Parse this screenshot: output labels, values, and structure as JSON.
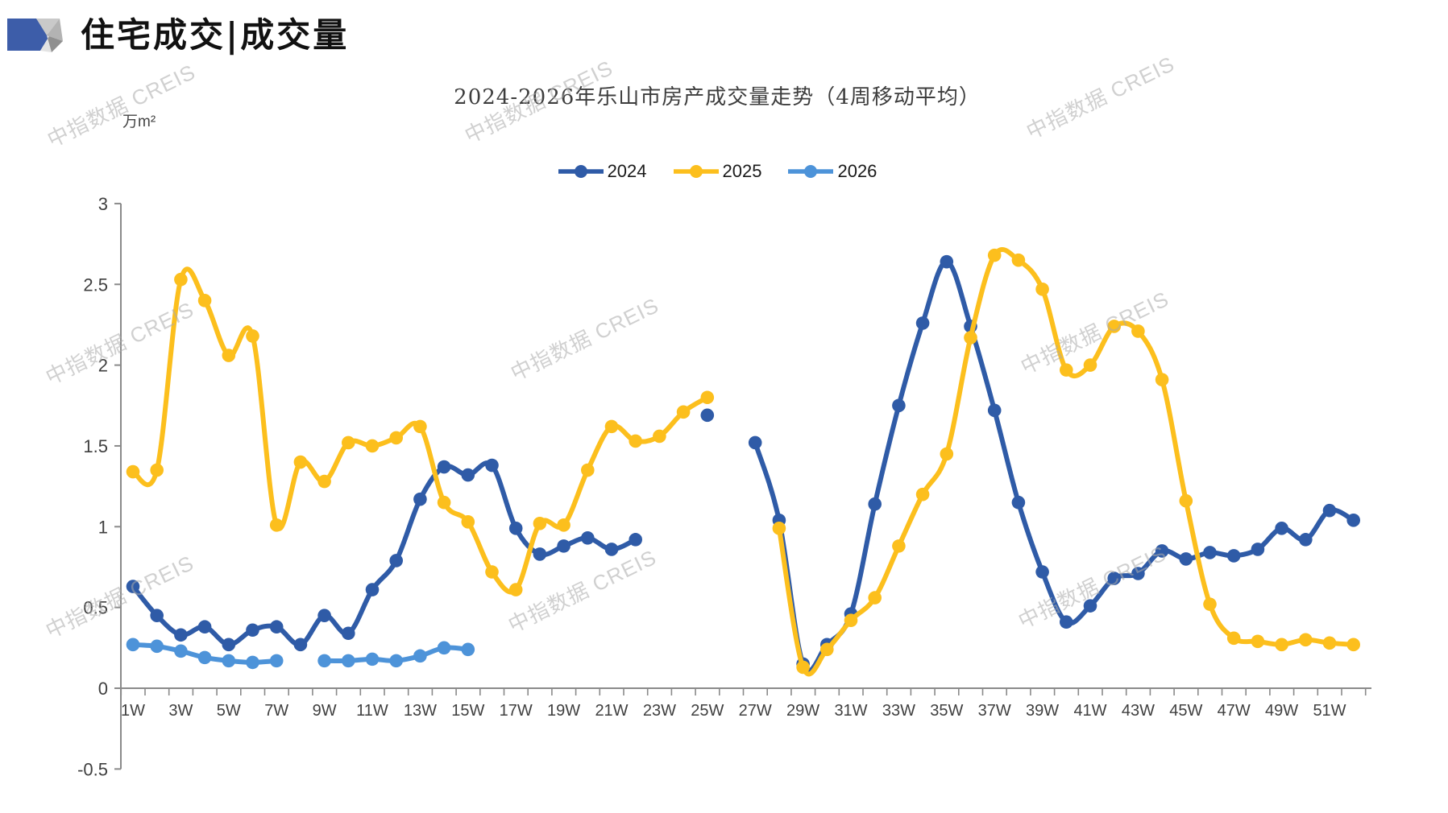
{
  "header": {
    "title": "住宅成交|成交量"
  },
  "watermark": {
    "text": "中指数据 CREIS"
  },
  "chart_data": {
    "type": "line",
    "title": "2024-2026年乐山市房产成交量走势（4周移动平均）",
    "unit_label": "万m²",
    "xlabel": "",
    "ylabel": "万m²",
    "ylim": [
      -0.5,
      3
    ],
    "ytick_step": 0.5,
    "ytick_labels": [
      "3",
      "2.5",
      "2",
      "1.5",
      "1",
      "0.5",
      "0",
      "-0.5"
    ],
    "grid": false,
    "legend_position": "top",
    "smooth_lines": true,
    "categories": [
      "1W",
      "2W",
      "3W",
      "4W",
      "5W",
      "6W",
      "7W",
      "8W",
      "9W",
      "10W",
      "11W",
      "12W",
      "13W",
      "14W",
      "15W",
      "16W",
      "17W",
      "18W",
      "19W",
      "20W",
      "21W",
      "22W",
      "23W",
      "24W",
      "25W",
      "26W",
      "27W",
      "28W",
      "29W",
      "30W",
      "31W",
      "32W",
      "33W",
      "34W",
      "35W",
      "36W",
      "37W",
      "38W",
      "39W",
      "40W",
      "41W",
      "42W",
      "43W",
      "44W",
      "45W",
      "46W",
      "47W",
      "48W",
      "49W",
      "50W",
      "51W",
      "52W"
    ],
    "x_labels_shown": [
      "1W",
      "3W",
      "5W",
      "7W",
      "9W",
      "11W",
      "13W",
      "15W",
      "17W",
      "19W",
      "21W",
      "23W",
      "25W",
      "27W",
      "29W",
      "31W",
      "33W",
      "35W",
      "37W",
      "39W",
      "41W",
      "43W",
      "45W",
      "47W",
      "49W",
      "51W"
    ],
    "series": [
      {
        "name": "2024",
        "color": "#2F5BA7",
        "values": [
          0.63,
          0.45,
          0.33,
          0.38,
          0.27,
          0.36,
          0.38,
          0.27,
          0.45,
          0.34,
          0.61,
          0.79,
          1.17,
          1.37,
          1.32,
          1.38,
          0.99,
          0.83,
          0.88,
          0.93,
          0.86,
          0.92,
          null,
          null,
          1.69,
          null,
          1.52,
          1.04,
          0.15,
          0.27,
          0.46,
          1.14,
          1.75,
          2.26,
          2.64,
          2.24,
          1.72,
          1.15,
          0.72,
          0.41,
          0.51,
          0.68,
          0.71,
          0.85,
          0.8,
          0.84,
          0.82,
          0.86,
          0.99,
          0.92,
          1.1,
          1.04
        ]
      },
      {
        "name": "2025",
        "color": "#FCBF1D",
        "values": [
          1.34,
          1.35,
          2.53,
          2.4,
          2.06,
          2.18,
          1.01,
          1.4,
          1.28,
          1.52,
          1.5,
          1.55,
          1.62,
          1.15,
          1.03,
          0.72,
          0.61,
          1.02,
          1.01,
          1.35,
          1.62,
          1.53,
          1.56,
          1.71,
          1.8,
          null,
          null,
          0.99,
          0.13,
          0.24,
          0.42,
          0.56,
          0.88,
          1.2,
          1.45,
          2.17,
          2.68,
          2.65,
          2.47,
          1.97,
          2.0,
          2.24,
          2.21,
          1.91,
          1.16,
          0.52,
          0.31,
          0.29,
          0.27,
          0.3,
          0.28,
          0.27
        ]
      },
      {
        "name": "2026",
        "color": "#4D93D9",
        "values": [
          0.27,
          0.26,
          0.23,
          0.19,
          0.17,
          0.16,
          0.17,
          null,
          0.17,
          0.17,
          0.18,
          0.17,
          0.2,
          0.25,
          0.24,
          null,
          null,
          null,
          null,
          null,
          null,
          null,
          null,
          null,
          null,
          null,
          null,
          null,
          null,
          null,
          null,
          null,
          null,
          null,
          null,
          null,
          null,
          null,
          null,
          null,
          null,
          null,
          null,
          null,
          null,
          null,
          null,
          null,
          null,
          null,
          null,
          null
        ]
      }
    ]
  }
}
